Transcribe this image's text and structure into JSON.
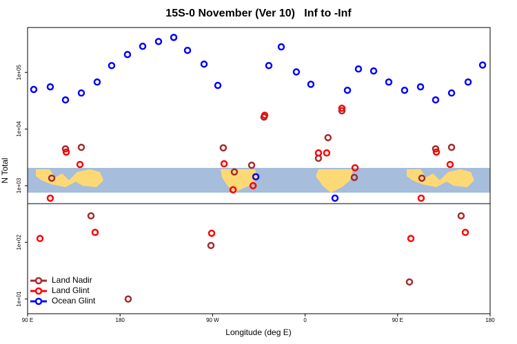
{
  "chart_data": {
    "type": "scatter",
    "title": "15S-0 November (Ver 10)   Inf to -Inf",
    "x_label": "Longitude (deg E)",
    "y_label": "N Total",
    "log_y": true,
    "legend": "bottom-left",
    "xlim": [
      90,
      540
    ],
    "ylim": [
      5.5,
      620000
    ],
    "xticks": [
      {
        "value": 90,
        "label": "90 E"
      },
      {
        "value": 180,
        "label": "180"
      },
      {
        "value": 270,
        "label": "90 W"
      },
      {
        "value": 360,
        "label": "0"
      },
      {
        "value": 450,
        "label": "90 E"
      },
      {
        "value": 540,
        "label": "180"
      }
    ],
    "yticks": [
      {
        "value": 10,
        "label": "1e+01"
      },
      {
        "value": 100,
        "label": "1e+02"
      },
      {
        "value": 1000,
        "label": "1e+03"
      },
      {
        "value": 10000,
        "label": "1e+04"
      },
      {
        "value": 100000,
        "label": "1e+05"
      }
    ],
    "series": [
      {
        "name": "Land Nadir",
        "color": "#a52a2a",
        "x": [
          113.5,
          126.9,
          142.3,
          151.7,
          187.9,
          268.4,
          280.4,
          291.2,
          308.0,
          320.0,
          373.0,
          382.3,
          395.8,
          407.9,
          461.5,
          473.6,
          487.0,
          502.5,
          511.8
        ],
        "values": [
          1360,
          4470,
          4760,
          294,
          10,
          88,
          4660,
          1750,
          2300,
          16300,
          3050,
          7050,
          21000,
          1400,
          20,
          1360,
          4470,
          4760,
          294
        ]
      },
      {
        "name": "Land Glint",
        "color": "#ff0000",
        "x": [
          102.1,
          112.1,
          127.6,
          141.0,
          155.7,
          269.1,
          281.2,
          289.9,
          309.4,
          320.7,
          373.0,
          381.0,
          395.8,
          408.6,
          462.9,
          472.9,
          487.7,
          501.1,
          515.9
        ],
        "values": [
          117,
          603,
          3930,
          2370,
          150,
          145,
          2440,
          847,
          1000,
          17500,
          3790,
          3790,
          23300,
          2070,
          117,
          603,
          3930,
          2370,
          150
        ]
      },
      {
        "name": "Ocean Glint",
        "color": "#0000ff",
        "x": [
          96.0,
          112.1,
          126.9,
          142.3,
          157.7,
          171.8,
          187.2,
          202.0,
          217.4,
          232.2,
          245.6,
          261.7,
          275.1,
          312.0,
          324.7,
          336.8,
          351.5,
          365.6,
          389.1,
          401.2,
          411.9,
          426.7,
          441.4,
          456.8,
          472.3,
          487.0,
          502.5,
          518.6,
          532.7
        ],
        "values": [
          50000,
          55600,
          32700,
          43300,
          67600,
          132000,
          207000,
          289000,
          351000,
          415000,
          245000,
          140000,
          58900,
          1440,
          132000,
          282000,
          102000,
          61700,
          603,
          48400,
          115000,
          106000,
          67600,
          48400,
          55600,
          32700,
          43300,
          67600,
          135000
        ]
      }
    ]
  }
}
